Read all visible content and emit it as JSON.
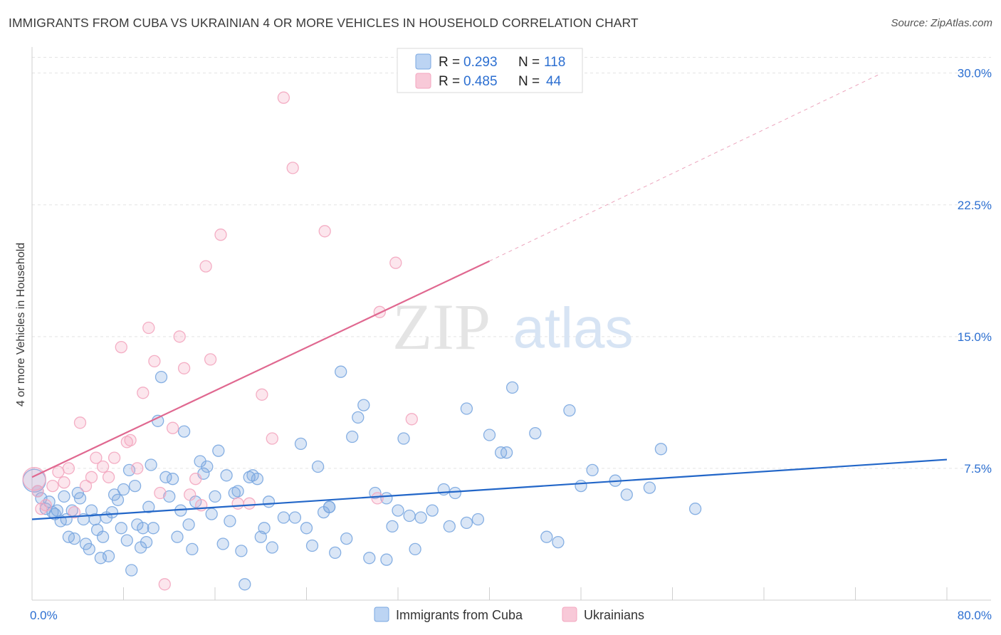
{
  "title": "IMMIGRANTS FROM CUBA VS UKRAINIAN 4 OR MORE VEHICLES IN HOUSEHOLD CORRELATION CHART",
  "source": "Source: ZipAtlas.com",
  "watermark": {
    "zip": "ZIP",
    "atlas": "atlas"
  },
  "chart_data": {
    "type": "scatter",
    "title": "IMMIGRANTS FROM CUBA VS UKRAINIAN 4 OR MORE VEHICLES IN HOUSEHOLD CORRELATION CHART",
    "xlabel": "",
    "ylabel": "4 or more Vehicles in Household",
    "xlim": [
      0,
      80
    ],
    "ylim": [
      0,
      31
    ],
    "x_tick_labels": [
      {
        "value": 0,
        "label": "0.0%"
      },
      {
        "value": 80,
        "label": "80.0%"
      }
    ],
    "y_tick_labels": [
      {
        "value": 7.5,
        "label": "7.5%"
      },
      {
        "value": 15.0,
        "label": "15.0%"
      },
      {
        "value": 22.5,
        "label": "22.5%"
      },
      {
        "value": 30.0,
        "label": "30.0%"
      }
    ],
    "legend_stats": [
      {
        "r_label": "R =",
        "r_value": "0.293",
        "n_label": "N =",
        "n_value": "118"
      },
      {
        "r_label": "R =",
        "r_value": "0.485",
        "n_label": "N =",
        "n_value": "44"
      }
    ],
    "series": [
      {
        "name": "Immigrants from Cuba",
        "color": "#7aa7e0",
        "line_color": "#2266c8",
        "trend": {
          "x0": 0,
          "y0": 4.6,
          "x1": 80,
          "y1": 8.0
        },
        "points": [
          [
            0.2,
            6.8
          ],
          [
            0.5,
            6.2
          ],
          [
            0.8,
            5.8
          ],
          [
            1.2,
            5.2
          ],
          [
            1.5,
            5.6
          ],
          [
            1.8,
            5.0
          ],
          [
            2.0,
            4.9
          ],
          [
            2.2,
            5.1
          ],
          [
            2.5,
            4.5
          ],
          [
            2.8,
            5.9
          ],
          [
            3.0,
            4.6
          ],
          [
            3.2,
            3.6
          ],
          [
            3.5,
            5.1
          ],
          [
            3.7,
            3.5
          ],
          [
            4.0,
            6.1
          ],
          [
            4.2,
            5.8
          ],
          [
            4.5,
            4.6
          ],
          [
            4.7,
            3.2
          ],
          [
            5.0,
            2.9
          ],
          [
            5.2,
            5.1
          ],
          [
            5.5,
            4.6
          ],
          [
            5.7,
            4.0
          ],
          [
            6.0,
            2.4
          ],
          [
            6.2,
            3.6
          ],
          [
            6.5,
            4.7
          ],
          [
            6.7,
            2.5
          ],
          [
            7.0,
            5.0
          ],
          [
            7.2,
            6.0
          ],
          [
            7.5,
            5.7
          ],
          [
            7.8,
            4.1
          ],
          [
            8.0,
            6.3
          ],
          [
            8.3,
            3.4
          ],
          [
            8.5,
            7.4
          ],
          [
            8.7,
            1.7
          ],
          [
            9.0,
            6.5
          ],
          [
            9.2,
            4.3
          ],
          [
            9.5,
            3.0
          ],
          [
            9.7,
            4.1
          ],
          [
            10.0,
            3.3
          ],
          [
            10.2,
            5.3
          ],
          [
            10.4,
            7.7
          ],
          [
            10.6,
            4.1
          ],
          [
            11.0,
            10.2
          ],
          [
            11.3,
            12.7
          ],
          [
            11.7,
            7.0
          ],
          [
            12.0,
            5.9
          ],
          [
            12.3,
            6.9
          ],
          [
            12.7,
            3.6
          ],
          [
            13.0,
            5.1
          ],
          [
            13.3,
            9.6
          ],
          [
            13.7,
            4.3
          ],
          [
            14.0,
            2.9
          ],
          [
            14.3,
            5.6
          ],
          [
            14.7,
            7.9
          ],
          [
            15.0,
            7.2
          ],
          [
            15.3,
            7.6
          ],
          [
            15.7,
            4.9
          ],
          [
            16.0,
            5.9
          ],
          [
            16.3,
            8.5
          ],
          [
            16.7,
            3.2
          ],
          [
            17.0,
            7.1
          ],
          [
            17.3,
            4.5
          ],
          [
            17.7,
            6.1
          ],
          [
            18.0,
            6.2
          ],
          [
            18.3,
            2.8
          ],
          [
            18.6,
            0.9
          ],
          [
            19.0,
            7.0
          ],
          [
            19.3,
            7.1
          ],
          [
            19.7,
            6.9
          ],
          [
            20.0,
            3.6
          ],
          [
            20.3,
            4.1
          ],
          [
            20.7,
            5.6
          ],
          [
            21.0,
            3.0
          ],
          [
            22.0,
            4.7
          ],
          [
            23.0,
            4.7
          ],
          [
            23.5,
            8.9
          ],
          [
            24.0,
            4.1
          ],
          [
            24.5,
            3.1
          ],
          [
            25.0,
            7.6
          ],
          [
            25.5,
            5.0
          ],
          [
            26.0,
            5.3
          ],
          [
            26.5,
            2.7
          ],
          [
            27.0,
            13.0
          ],
          [
            27.5,
            3.5
          ],
          [
            28.0,
            9.3
          ],
          [
            28.5,
            10.4
          ],
          [
            29.0,
            11.1
          ],
          [
            29.5,
            2.4
          ],
          [
            30.0,
            6.1
          ],
          [
            31.0,
            5.8
          ],
          [
            31.5,
            4.2
          ],
          [
            32.0,
            5.1
          ],
          [
            32.5,
            9.2
          ],
          [
            33.0,
            4.8
          ],
          [
            33.5,
            2.9
          ],
          [
            34.0,
            4.7
          ],
          [
            35.0,
            5.1
          ],
          [
            36.0,
            6.3
          ],
          [
            38.0,
            10.9
          ],
          [
            39.0,
            4.6
          ],
          [
            40.0,
            9.4
          ],
          [
            41.0,
            8.4
          ],
          [
            41.5,
            8.4
          ],
          [
            42.0,
            12.1
          ],
          [
            44.0,
            9.5
          ],
          [
            45.0,
            3.6
          ],
          [
            46.0,
            3.3
          ],
          [
            47.0,
            10.8
          ],
          [
            48.0,
            6.5
          ],
          [
            49.0,
            7.4
          ],
          [
            51.0,
            6.8
          ],
          [
            52.0,
            6.0
          ],
          [
            54.0,
            6.4
          ],
          [
            55.0,
            8.6
          ],
          [
            58.0,
            5.2
          ],
          [
            38.0,
            4.4
          ],
          [
            37.0,
            6.1
          ],
          [
            36.5,
            4.2
          ],
          [
            31.0,
            2.3
          ],
          [
            26.0,
            5.3
          ]
        ]
      },
      {
        "name": "Ukrainians",
        "color": "#f3a6bf",
        "line_color": "#e06890",
        "trend": {
          "x0": 0,
          "y0": 7.0,
          "x1": 40,
          "y1": 19.3,
          "dash_x1": 74,
          "dash_y1": 29.9
        },
        "points": [
          [
            0.2,
            6.9
          ],
          [
            0.5,
            6.2
          ],
          [
            0.8,
            5.2
          ],
          [
            1.2,
            5.4
          ],
          [
            1.8,
            6.5
          ],
          [
            2.3,
            7.3
          ],
          [
            2.8,
            6.7
          ],
          [
            3.2,
            7.5
          ],
          [
            3.7,
            5.0
          ],
          [
            4.2,
            10.1
          ],
          [
            4.7,
            6.5
          ],
          [
            5.2,
            7.0
          ],
          [
            5.6,
            8.1
          ],
          [
            6.2,
            7.6
          ],
          [
            6.7,
            7.0
          ],
          [
            7.2,
            8.1
          ],
          [
            7.8,
            14.4
          ],
          [
            8.3,
            9.0
          ],
          [
            8.6,
            9.1
          ],
          [
            9.2,
            7.5
          ],
          [
            9.7,
            11.8
          ],
          [
            10.2,
            15.5
          ],
          [
            10.7,
            13.6
          ],
          [
            11.2,
            6.1
          ],
          [
            11.6,
            0.9
          ],
          [
            12.3,
            9.8
          ],
          [
            12.9,
            15.0
          ],
          [
            13.3,
            13.2
          ],
          [
            13.8,
            6.0
          ],
          [
            14.3,
            6.9
          ],
          [
            14.8,
            5.4
          ],
          [
            15.2,
            19.0
          ],
          [
            15.6,
            13.7
          ],
          [
            16.5,
            20.8
          ],
          [
            18.0,
            5.5
          ],
          [
            19.0,
            5.5
          ],
          [
            20.1,
            11.7
          ],
          [
            21.0,
            9.2
          ],
          [
            22.0,
            28.6
          ],
          [
            22.8,
            24.6
          ],
          [
            25.6,
            21.0
          ],
          [
            30.4,
            16.4
          ],
          [
            31.8,
            19.2
          ],
          [
            30.2,
            5.8
          ],
          [
            33.2,
            10.3
          ]
        ]
      }
    ]
  }
}
